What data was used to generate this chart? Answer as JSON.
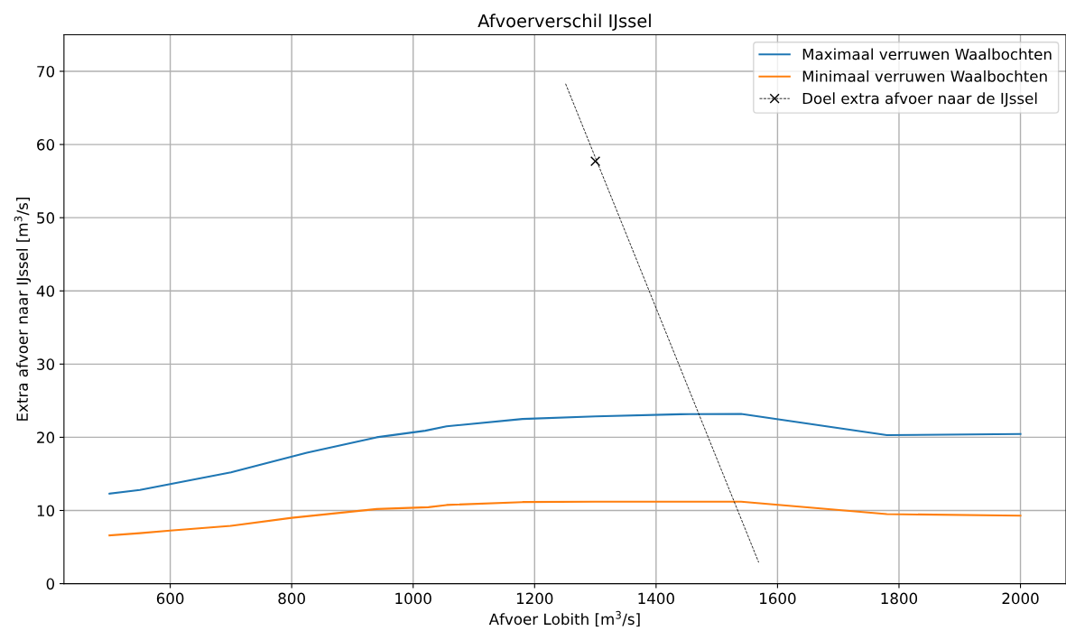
{
  "chart_data": {
    "type": "line",
    "title": "Afvoerverschil IJssel",
    "xlabel": "Afvoer Lobith [m$^{3}$/s]",
    "ylabel": "Extra afvoer naar IJssel [m$^{3}$/s]",
    "xlim": [
      425,
      2075
    ],
    "xticks": [
      600,
      800,
      1000,
      1200,
      1400,
      1600,
      1800,
      2000
    ],
    "ylim": [
      0,
      75
    ],
    "yticks": [
      0,
      10,
      20,
      30,
      40,
      50,
      60,
      70
    ],
    "grid": true,
    "legend": "top right",
    "series": [
      {
        "name": "Maximaal verruwen Waalbochten",
        "color": "#1f77b4",
        "line_style": "solid",
        "marker": "none",
        "x": [
          500,
          550,
          600,
          700,
          825,
          940,
          1020,
          1055,
          1180,
          1300,
          1440,
          1540,
          1780,
          2000
        ],
        "values": [
          12.3,
          12.8,
          13.6,
          15.2,
          17.9,
          20.0,
          20.9,
          21.5,
          22.5,
          22.85,
          23.15,
          23.2,
          20.3,
          20.45
        ]
      },
      {
        "name": "Minimaal verruwen Waalbochten",
        "color": "#ff7f0e",
        "line_style": "solid",
        "marker": "none",
        "x": [
          500,
          550,
          600,
          700,
          800,
          940,
          1025,
          1055,
          1180,
          1300,
          1540,
          1780,
          2000
        ],
        "values": [
          6.6,
          6.9,
          7.25,
          7.9,
          9.0,
          10.2,
          10.45,
          10.75,
          11.15,
          11.2,
          11.2,
          9.5,
          9.3
        ]
      },
      {
        "name": "Doel extra afvoer naar de IJssel",
        "color": "#000000",
        "line_style": "dashed",
        "marker": "cross",
        "x": [
          1300
        ],
        "values": [
          57.7
        ]
      },
      {
        "color": "#000000",
        "line_style": "dashed",
        "marker": "none",
        "x": [
          1251,
          1569
        ],
        "values": [
          68.3,
          2.9
        ]
      }
    ]
  }
}
